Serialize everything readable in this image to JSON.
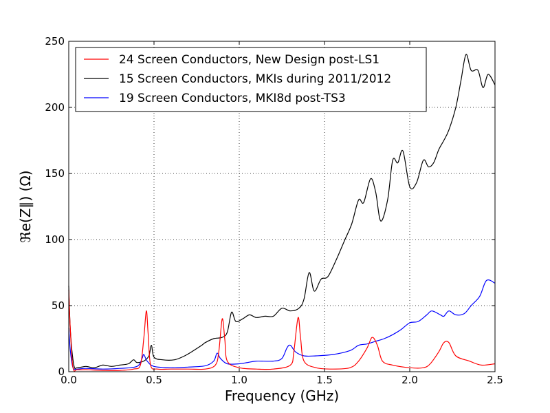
{
  "chart_data": {
    "type": "line",
    "xlabel": "Frequency (GHz)",
    "ylabel": "ℜe(Z∥) (Ω)",
    "xlim": [
      0.0,
      2.5
    ],
    "ylim": [
      0,
      250
    ],
    "x_ticks": [
      "0.0",
      "0.5",
      "1.0",
      "1.5",
      "2.0",
      "2.5"
    ],
    "y_ticks": [
      "0",
      "50",
      "100",
      "150",
      "200",
      "250"
    ],
    "x_tick_values": [
      0.0,
      0.5,
      1.0,
      1.5,
      2.0,
      2.5
    ],
    "y_tick_values": [
      0,
      50,
      100,
      150,
      200,
      250
    ],
    "grid": true,
    "legend_position": "top-left",
    "series": [
      {
        "name": "24 Screen Conductors, New Design post-LS1",
        "color": "#ff0000",
        "points": [
          [
            0.0,
            62
          ],
          [
            0.01,
            30
          ],
          [
            0.025,
            3
          ],
          [
            0.05,
            1.5
          ],
          [
            0.1,
            1.5
          ],
          [
            0.2,
            1
          ],
          [
            0.3,
            1
          ],
          [
            0.38,
            2
          ],
          [
            0.42,
            5
          ],
          [
            0.44,
            25
          ],
          [
            0.455,
            46
          ],
          [
            0.465,
            30
          ],
          [
            0.48,
            5
          ],
          [
            0.52,
            2
          ],
          [
            0.6,
            2
          ],
          [
            0.7,
            2
          ],
          [
            0.8,
            2
          ],
          [
            0.86,
            5
          ],
          [
            0.88,
            15
          ],
          [
            0.9,
            40
          ],
          [
            0.915,
            25
          ],
          [
            0.93,
            8
          ],
          [
            1.0,
            3
          ],
          [
            1.1,
            2
          ],
          [
            1.2,
            2
          ],
          [
            1.3,
            5
          ],
          [
            1.32,
            15
          ],
          [
            1.345,
            41
          ],
          [
            1.36,
            25
          ],
          [
            1.38,
            8
          ],
          [
            1.45,
            3
          ],
          [
            1.55,
            2
          ],
          [
            1.65,
            3
          ],
          [
            1.7,
            8
          ],
          [
            1.75,
            18
          ],
          [
            1.78,
            26
          ],
          [
            1.81,
            20
          ],
          [
            1.84,
            8
          ],
          [
            1.9,
            5
          ],
          [
            2.0,
            3
          ],
          [
            2.08,
            3
          ],
          [
            2.12,
            6
          ],
          [
            2.17,
            15
          ],
          [
            2.2,
            22
          ],
          [
            2.23,
            22
          ],
          [
            2.27,
            12
          ],
          [
            2.35,
            8
          ],
          [
            2.42,
            5
          ],
          [
            2.5,
            6
          ]
        ]
      },
      {
        "name": "15 Screen Conductors, MKIs during 2011/2012",
        "color": "#000000",
        "points": [
          [
            0.0,
            65
          ],
          [
            0.01,
            30
          ],
          [
            0.03,
            5
          ],
          [
            0.05,
            3
          ],
          [
            0.1,
            4
          ],
          [
            0.15,
            3
          ],
          [
            0.2,
            5
          ],
          [
            0.25,
            4
          ],
          [
            0.3,
            5
          ],
          [
            0.35,
            6
          ],
          [
            0.38,
            9
          ],
          [
            0.4,
            7
          ],
          [
            0.44,
            8
          ],
          [
            0.47,
            12
          ],
          [
            0.485,
            20
          ],
          [
            0.5,
            11
          ],
          [
            0.55,
            9
          ],
          [
            0.62,
            9
          ],
          [
            0.68,
            12
          ],
          [
            0.72,
            15
          ],
          [
            0.78,
            20
          ],
          [
            0.8,
            22
          ],
          [
            0.85,
            25
          ],
          [
            0.9,
            26
          ],
          [
            0.93,
            30
          ],
          [
            0.955,
            45
          ],
          [
            0.98,
            38
          ],
          [
            1.02,
            40
          ],
          [
            1.06,
            43
          ],
          [
            1.1,
            41
          ],
          [
            1.15,
            42
          ],
          [
            1.2,
            42
          ],
          [
            1.25,
            48
          ],
          [
            1.3,
            46
          ],
          [
            1.35,
            48
          ],
          [
            1.38,
            55
          ],
          [
            1.41,
            75
          ],
          [
            1.44,
            61
          ],
          [
            1.48,
            70
          ],
          [
            1.52,
            72
          ],
          [
            1.57,
            85
          ],
          [
            1.62,
            100
          ],
          [
            1.66,
            112
          ],
          [
            1.7,
            130
          ],
          [
            1.73,
            128
          ],
          [
            1.77,
            146
          ],
          [
            1.8,
            136
          ],
          [
            1.83,
            114
          ],
          [
            1.87,
            130
          ],
          [
            1.9,
            160
          ],
          [
            1.93,
            158
          ],
          [
            1.96,
            167
          ],
          [
            2.0,
            140
          ],
          [
            2.04,
            143
          ],
          [
            2.08,
            160
          ],
          [
            2.11,
            155
          ],
          [
            2.14,
            158
          ],
          [
            2.17,
            168
          ],
          [
            2.2,
            175
          ],
          [
            2.23,
            183
          ],
          [
            2.27,
            200
          ],
          [
            2.3,
            220
          ],
          [
            2.33,
            240
          ],
          [
            2.36,
            228
          ],
          [
            2.4,
            228
          ],
          [
            2.43,
            215
          ],
          [
            2.46,
            225
          ],
          [
            2.5,
            217
          ]
        ]
      },
      {
        "name": "19 Screen Conductors, MKI8d post-TS3",
        "color": "#0000ff",
        "points": [
          [
            0.0,
            33
          ],
          [
            0.01,
            15
          ],
          [
            0.025,
            3
          ],
          [
            0.05,
            2
          ],
          [
            0.1,
            2.5
          ],
          [
            0.2,
            2
          ],
          [
            0.3,
            2.5
          ],
          [
            0.4,
            4
          ],
          [
            0.43,
            10
          ],
          [
            0.44,
            13
          ],
          [
            0.46,
            8
          ],
          [
            0.5,
            4
          ],
          [
            0.6,
            3
          ],
          [
            0.7,
            3.5
          ],
          [
            0.8,
            4.5
          ],
          [
            0.85,
            8
          ],
          [
            0.87,
            14
          ],
          [
            0.89,
            10
          ],
          [
            0.93,
            6
          ],
          [
            1.0,
            6
          ],
          [
            1.05,
            7
          ],
          [
            1.1,
            8
          ],
          [
            1.2,
            8
          ],
          [
            1.25,
            10
          ],
          [
            1.28,
            18
          ],
          [
            1.3,
            20
          ],
          [
            1.33,
            15
          ],
          [
            1.38,
            12
          ],
          [
            1.45,
            12
          ],
          [
            1.55,
            13
          ],
          [
            1.65,
            16
          ],
          [
            1.7,
            20
          ],
          [
            1.75,
            21
          ],
          [
            1.8,
            23
          ],
          [
            1.85,
            25
          ],
          [
            1.9,
            28
          ],
          [
            1.95,
            32
          ],
          [
            2.0,
            37
          ],
          [
            2.05,
            38
          ],
          [
            2.1,
            43
          ],
          [
            2.13,
            46
          ],
          [
            2.18,
            43
          ],
          [
            2.2,
            42
          ],
          [
            2.23,
            46
          ],
          [
            2.27,
            43
          ],
          [
            2.32,
            44
          ],
          [
            2.36,
            50
          ],
          [
            2.41,
            57
          ],
          [
            2.45,
            69
          ],
          [
            2.5,
            67
          ]
        ]
      }
    ]
  }
}
